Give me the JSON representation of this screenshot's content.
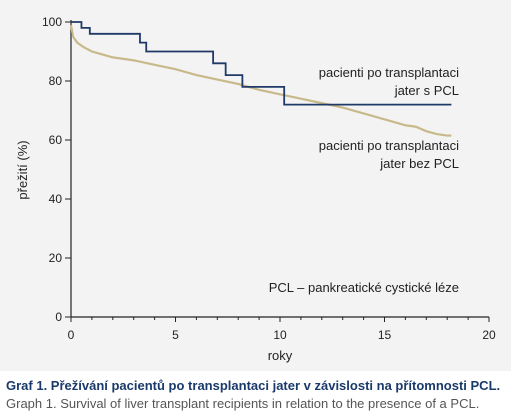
{
  "chart_data": {
    "type": "line",
    "xlabel": "roky",
    "ylabel": "přežití (%)",
    "xlim": [
      0,
      20
    ],
    "ylim": [
      0,
      100
    ],
    "xticks": [
      0,
      5,
      10,
      15,
      20
    ],
    "yticks": [
      0,
      20,
      40,
      60,
      80,
      100
    ],
    "grid": false,
    "series": [
      {
        "name": "pacienti po transplantaci jater s PCL",
        "color": "#1f3a68",
        "step": true,
        "x": [
          0,
          0.5,
          0.9,
          3.3,
          3.6,
          6.8,
          7.4,
          8.2,
          10.2,
          18.2
        ],
        "y": [
          100,
          98,
          96,
          93,
          90,
          86,
          82,
          78,
          72,
          72
        ]
      },
      {
        "name": "pacienti po transplantaci jater bez PCL",
        "color": "#c8b98a",
        "step": false,
        "x": [
          0,
          0.1,
          0.3,
          0.6,
          1,
          1.5,
          2,
          3,
          4,
          5,
          6,
          7,
          8,
          9,
          10,
          11,
          12,
          13,
          14,
          15,
          15.5,
          16,
          16.5,
          17,
          17.5,
          18,
          18.2
        ],
        "y": [
          99,
          95,
          93,
          91.5,
          90,
          89,
          88,
          87,
          85.5,
          84,
          82,
          80.5,
          79,
          77,
          75.5,
          74,
          72.5,
          71,
          69,
          67,
          66,
          65,
          64.5,
          63,
          62,
          61.5,
          61.5
        ]
      }
    ],
    "annotations": [
      "PCL – pankreatické cystické léze"
    ]
  },
  "labels": {
    "s_pcl_line1": "pacienti po transplantaci",
    "s_pcl_line2": "jater s PCL",
    "bez_pcl_line1": "pacienti po transplantaci",
    "bez_pcl_line2": "jater bez PCL",
    "pcl_note": "PCL – pankreatické cystické léze"
  },
  "caption": {
    "cz": "Graf 1. Přežívání pacientů po transplantaci jater v závislosti na přítomnosti PCL.",
    "en": "Graph 1. Survival of liver transplant recipients in relation to the presence of a PCL."
  }
}
